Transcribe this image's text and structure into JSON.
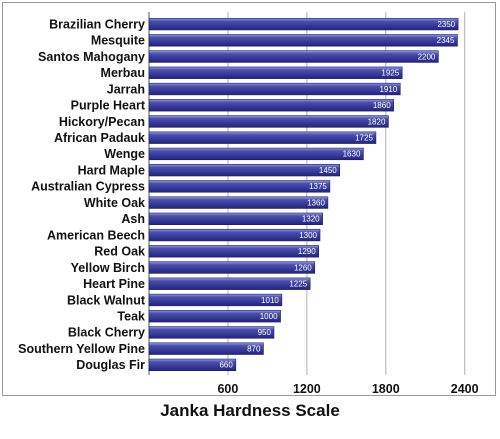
{
  "chart_data": {
    "type": "bar",
    "orientation": "horizontal",
    "title": "Janka Hardness Scale",
    "xlabel": "",
    "ylabel": "",
    "categories": [
      "Brazilian Cherry",
      "Mesquite",
      "Santos Mahogany",
      "Merbau",
      "Jarrah",
      "Purple Heart",
      "Hickory/Pecan",
      "African Padauk",
      "Wenge",
      "Hard Maple",
      "Australian Cypress",
      "White Oak",
      "Ash",
      "American Beech",
      "Red Oak",
      "Yellow Birch",
      "Heart Pine",
      "Black Walnut",
      "Teak",
      "Black Cherry",
      "Southern Yellow Pine",
      "Douglas Fir"
    ],
    "values": [
      2350,
      2345,
      2200,
      1925,
      1910,
      1860,
      1820,
      1725,
      1630,
      1450,
      1375,
      1360,
      1320,
      1300,
      1290,
      1260,
      1225,
      1010,
      1000,
      950,
      870,
      660
    ],
    "value_labels": [
      "2350",
      "2345",
      "2200",
      "1925",
      "1910",
      "1860",
      "1820",
      "1725",
      "1630",
      "1450",
      "1375",
      "1360",
      "1320",
      "1300",
      "1290",
      "1260",
      "1225",
      "1010",
      "1000",
      "950",
      "870",
      "660"
    ],
    "xticks": [
      600,
      1200,
      1800,
      2400
    ],
    "xtick_labels": [
      "600",
      "1200",
      "1800",
      "2400"
    ],
    "xlim": [
      0,
      2600
    ],
    "grid": "vertical",
    "legend": "none",
    "bar_color": "#2d2f8f",
    "bar_highlight": "#9a9cd6",
    "grid_color": "#b0b0b0"
  }
}
